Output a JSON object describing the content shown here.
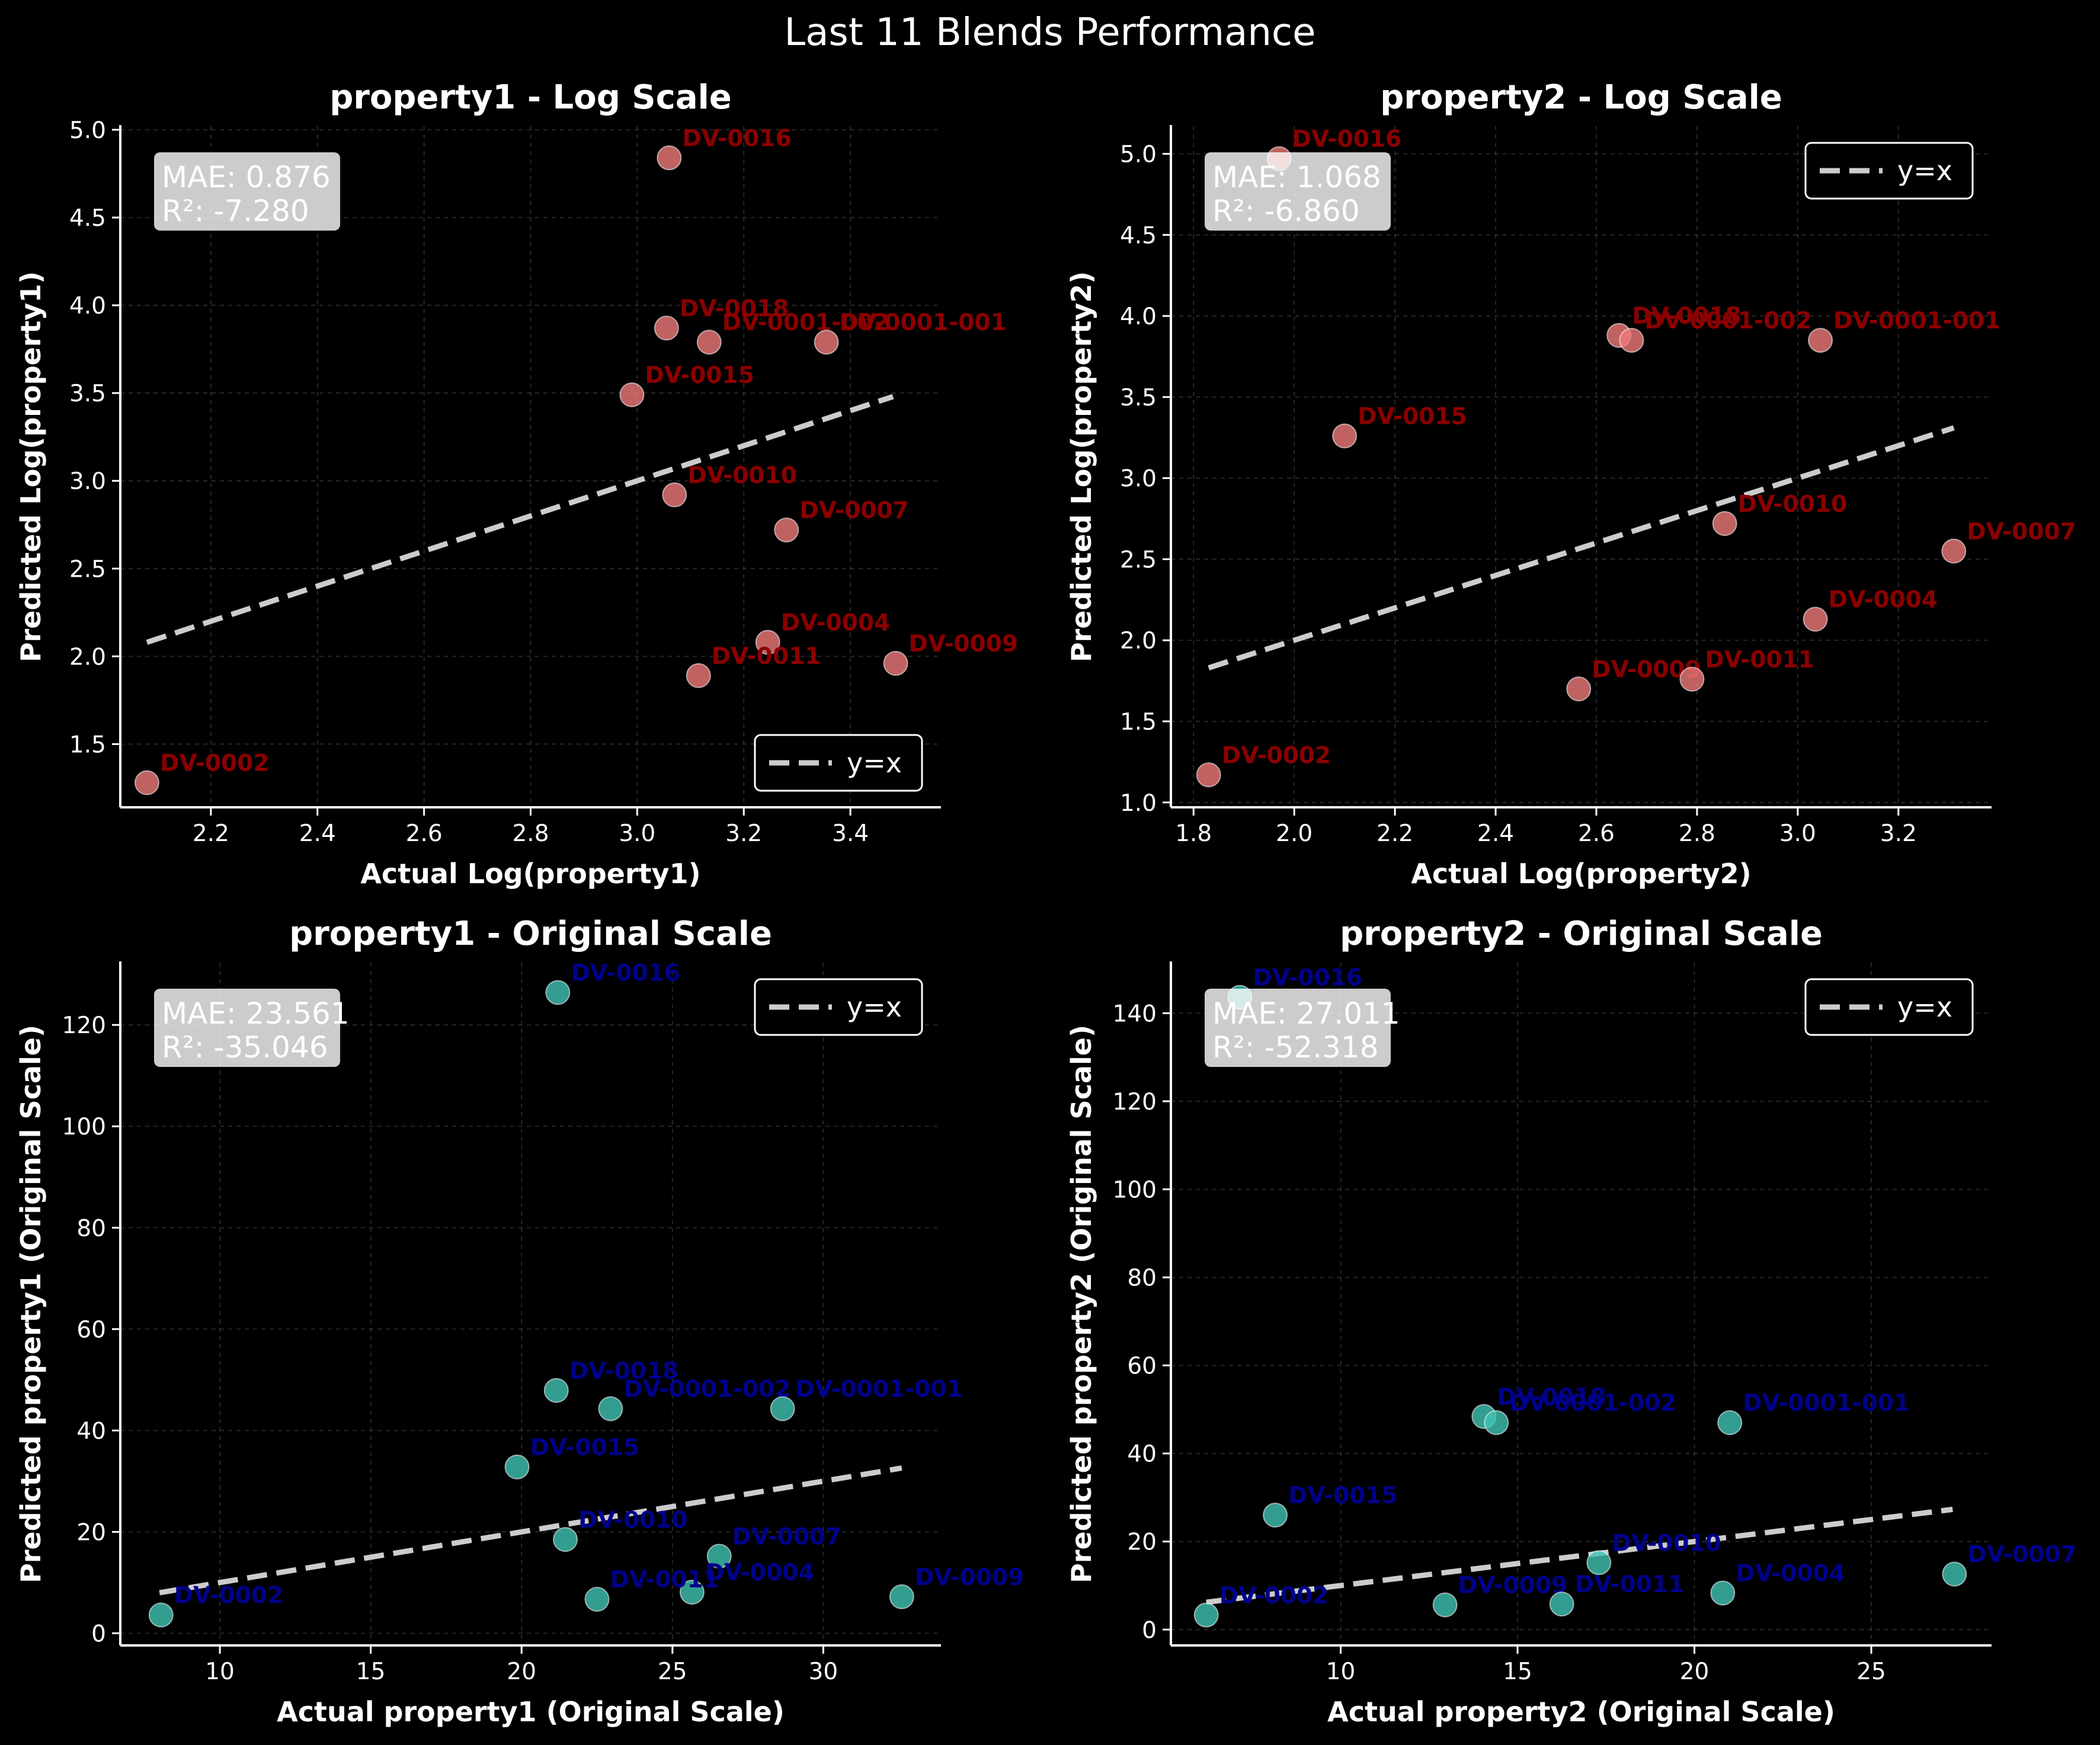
{
  "title": "Last 11 Blends Performance",
  "colors": {
    "background": "#000000",
    "log_marker": "#f07a7a",
    "log_label": "#8b0000",
    "orig_marker": "#40c4b4",
    "orig_label": "#00008b",
    "identity_line": "#cccccc",
    "grid": "#444444"
  },
  "chart_data": [
    {
      "type": "scatter",
      "scale": "log",
      "title": "property1 - Log Scale",
      "xlabel": "Actual Log(property1)",
      "ylabel": "Predicted Log(property1)",
      "xlim": [
        2.03,
        3.57
      ],
      "ylim": [
        1.14,
        5.02
      ],
      "xticks": [
        "2.2",
        "2.4",
        "2.6",
        "2.8",
        "3.0",
        "3.2",
        "3.4"
      ],
      "yticks": [
        "1.5",
        "2.0",
        "2.5",
        "3.0",
        "3.5",
        "4.0",
        "4.5",
        "5.0"
      ],
      "grid": true,
      "legend_position": "bottom-right",
      "legend_label": "y=x",
      "stats": {
        "mae": "MAE: 0.876",
        "r2": "R²: -7.280"
      },
      "identity": [
        2.08,
        3.48
      ],
      "points": [
        {
          "label": "DV-0016",
          "x": 3.06,
          "y": 4.84
        },
        {
          "label": "DV-0018",
          "x": 3.055,
          "y": 3.87
        },
        {
          "label": "DV-0001-002",
          "x": 3.135,
          "y": 3.79
        },
        {
          "label": "DV-0001-001",
          "x": 3.355,
          "y": 3.79
        },
        {
          "label": "DV-0015",
          "x": 2.99,
          "y": 3.49
        },
        {
          "label": "DV-0010",
          "x": 3.07,
          "y": 2.92
        },
        {
          "label": "DV-0007",
          "x": 3.28,
          "y": 2.72
        },
        {
          "label": "DV-0004",
          "x": 3.245,
          "y": 2.08
        },
        {
          "label": "DV-0011",
          "x": 3.115,
          "y": 1.89
        },
        {
          "label": "DV-0009",
          "x": 3.485,
          "y": 1.96
        },
        {
          "label": "DV-0002",
          "x": 2.08,
          "y": 1.28
        }
      ]
    },
    {
      "type": "scatter",
      "scale": "log",
      "title": "property2 - Log Scale",
      "xlabel": "Actual Log(property2)",
      "ylabel": "Predicted Log(property2)",
      "xlim": [
        1.755,
        3.385
      ],
      "ylim": [
        0.97,
        5.17
      ],
      "xticks": [
        "1.8",
        "2.0",
        "2.2",
        "2.4",
        "2.6",
        "2.8",
        "3.0",
        "3.2"
      ],
      "yticks": [
        "1.0",
        "1.5",
        "2.0",
        "2.5",
        "3.0",
        "3.5",
        "4.0",
        "4.5",
        "5.0"
      ],
      "grid": true,
      "legend_position": "top-right",
      "legend_label": "y=x",
      "stats": {
        "mae": "MAE: 1.068",
        "r2": "R²: -6.860"
      },
      "identity": [
        1.83,
        3.31
      ],
      "points": [
        {
          "label": "DV-0016",
          "x": 1.97,
          "y": 4.97
        },
        {
          "label": "DV-0018",
          "x": 2.645,
          "y": 3.88
        },
        {
          "label": "DV-0001-002",
          "x": 2.67,
          "y": 3.85
        },
        {
          "label": "DV-0001-001",
          "x": 3.045,
          "y": 3.85
        },
        {
          "label": "DV-0015",
          "x": 2.1,
          "y": 3.26
        },
        {
          "label": "DV-0010",
          "x": 2.855,
          "y": 2.72
        },
        {
          "label": "DV-0007",
          "x": 3.31,
          "y": 2.55
        },
        {
          "label": "DV-0004",
          "x": 3.035,
          "y": 2.13
        },
        {
          "label": "DV-0009",
          "x": 2.565,
          "y": 1.7
        },
        {
          "label": "DV-0011",
          "x": 2.79,
          "y": 1.76
        },
        {
          "label": "DV-0002",
          "x": 1.83,
          "y": 1.17
        }
      ]
    },
    {
      "type": "scatter",
      "scale": "original",
      "title": "property1 - Original Scale",
      "xlabel": "Actual property1 (Original Scale)",
      "ylabel": "Predicted property1 (Original Scale)",
      "xlim": [
        6.7,
        33.9
      ],
      "ylim": [
        -2.4,
        132.3
      ],
      "xticks": [
        "10",
        "15",
        "20",
        "25",
        "30"
      ],
      "yticks": [
        "0",
        "20",
        "40",
        "60",
        "80",
        "100",
        "120"
      ],
      "grid": true,
      "legend_position": "top-right",
      "legend_label": "y=x",
      "stats": {
        "mae": "MAE: 23.561",
        "r2": "R²: -35.046"
      },
      "identity": [
        8.0,
        32.6
      ],
      "points": [
        {
          "label": "DV-0016",
          "x": 21.2,
          "y": 126.4
        },
        {
          "label": "DV-0018",
          "x": 21.15,
          "y": 47.9
        },
        {
          "label": "DV-0001-002",
          "x": 22.95,
          "y": 44.3
        },
        {
          "label": "DV-0001-001",
          "x": 28.65,
          "y": 44.3
        },
        {
          "label": "DV-0015",
          "x": 19.85,
          "y": 32.8
        },
        {
          "label": "DV-0010",
          "x": 21.45,
          "y": 18.5
        },
        {
          "label": "DV-0007",
          "x": 26.55,
          "y": 15.2
        },
        {
          "label": "DV-0004",
          "x": 25.65,
          "y": 8.1
        },
        {
          "label": "DV-0011",
          "x": 22.5,
          "y": 6.7
        },
        {
          "label": "DV-0009",
          "x": 32.6,
          "y": 7.2
        },
        {
          "label": "DV-0002",
          "x": 8.05,
          "y": 3.6
        }
      ]
    },
    {
      "type": "scatter",
      "scale": "original",
      "title": "property2 - Original Scale",
      "xlabel": "Actual property2 (Original Scale)",
      "ylabel": "Predicted property2 (Original Scale)",
      "xlim": [
        5.2,
        28.4
      ],
      "ylim": [
        -3.6,
        151.5
      ],
      "xticks": [
        "10",
        "15",
        "20",
        "25"
      ],
      "yticks": [
        "0",
        "20",
        "40",
        "60",
        "80",
        "100",
        "120",
        "140"
      ],
      "grid": true,
      "legend_position": "top-right",
      "legend_label": "y=x",
      "stats": {
        "mae": "MAE: 27.011",
        "r2": "R²: -52.318"
      },
      "identity": [
        6.2,
        27.3
      ],
      "points": [
        {
          "label": "DV-0016",
          "x": 7.15,
          "y": 143.6
        },
        {
          "label": "DV-0018",
          "x": 14.05,
          "y": 48.4
        },
        {
          "label": "DV-0001-002",
          "x": 14.4,
          "y": 47.0
        },
        {
          "label": "DV-0001-001",
          "x": 21.0,
          "y": 47.0
        },
        {
          "label": "DV-0015",
          "x": 8.15,
          "y": 26.0
        },
        {
          "label": "DV-0010",
          "x": 17.3,
          "y": 15.2
        },
        {
          "label": "DV-0007",
          "x": 27.35,
          "y": 12.6
        },
        {
          "label": "DV-0004",
          "x": 20.8,
          "y": 8.3
        },
        {
          "label": "DV-0009",
          "x": 12.95,
          "y": 5.6
        },
        {
          "label": "DV-0011",
          "x": 16.25,
          "y": 5.8
        },
        {
          "label": "DV-0002",
          "x": 6.2,
          "y": 3.3
        }
      ]
    }
  ]
}
